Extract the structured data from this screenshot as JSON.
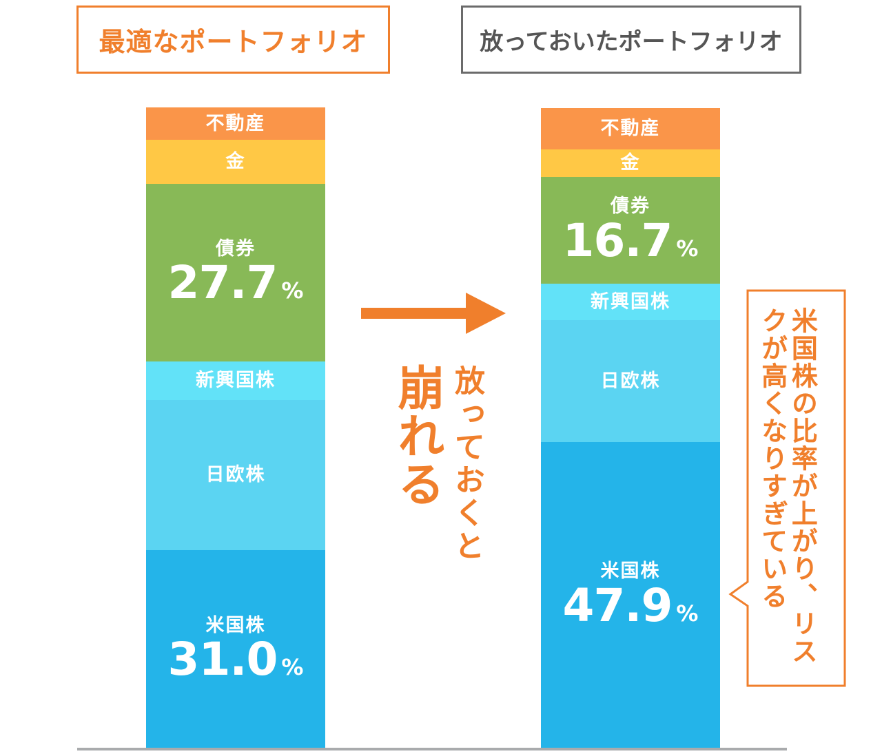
{
  "titles": {
    "left": "最適なポートフォリオ",
    "right": "放っておいたポートフォリオ"
  },
  "colors": {
    "accent": "#f07f2c",
    "gray_border": "#6b6b6b",
    "real_estate": "#fa9549",
    "gold": "#ffc845",
    "bonds": "#88b957",
    "emerging": "#62e2f8",
    "jp_eu": "#5bd4f2",
    "us": "#24b4e9",
    "baseline": "#a9abad"
  },
  "transition": {
    "big": "崩れる",
    "small": "放っておくと",
    "arrow_icon": "right-arrow-icon"
  },
  "callout": {
    "text": "米国株の比率が上がり、リスクが高くなりすぎている"
  },
  "chart_data": [
    {
      "type": "bar",
      "title": "最適なポートフォリオ",
      "stacked": true,
      "segments": [
        {
          "name": "米国株",
          "value": 31.0,
          "value_label": "31.0",
          "unit": "%",
          "color": "#24b4e9"
        },
        {
          "name": "日欧株",
          "value": 23.4,
          "color": "#5bd4f2"
        },
        {
          "name": "新興国株",
          "value": 6.0,
          "color": "#62e2f8"
        },
        {
          "name": "債券",
          "value": 27.7,
          "value_label": "27.7",
          "unit": "%",
          "color": "#88b957"
        },
        {
          "name": "金",
          "value": 6.9,
          "color": "#ffc845"
        },
        {
          "name": "不動産",
          "value": 5.0,
          "color": "#fa9549"
        }
      ]
    },
    {
      "type": "bar",
      "title": "放っておいたポートフォリオ",
      "stacked": true,
      "segments": [
        {
          "name": "米国株",
          "value": 47.9,
          "value_label": "47.9",
          "unit": "%",
          "color": "#24b4e9"
        },
        {
          "name": "日欧株",
          "value": 19.0,
          "color": "#5bd4f2"
        },
        {
          "name": "新興国株",
          "value": 5.7,
          "color": "#62e2f8"
        },
        {
          "name": "債券",
          "value": 16.7,
          "value_label": "16.7",
          "unit": "%",
          "color": "#88b957"
        },
        {
          "name": "金",
          "value": 4.3,
          "color": "#ffc845"
        },
        {
          "name": "不動産",
          "value": 6.4,
          "color": "#fa9549"
        }
      ]
    }
  ]
}
